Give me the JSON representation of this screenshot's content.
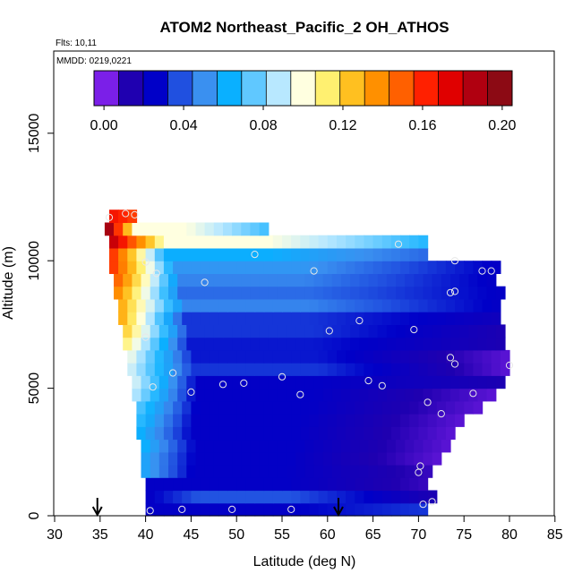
{
  "chart_data": {
    "type": "heatmap",
    "title": "ATOM2 Northeast_Pacific_2 OH_ATHOS",
    "info_flights": "Flts: 10,11",
    "info_dates": "MMDD: 0219,0221",
    "xlabel": "Latitude (deg N)",
    "ylabel": "Altitude (m)",
    "xlim": [
      30,
      85
    ],
    "ylim": [
      0,
      18000
    ],
    "x_ticks": [
      "30",
      "35",
      "40",
      "45",
      "50",
      "55",
      "60",
      "65",
      "70",
      "75",
      "80",
      "85"
    ],
    "y_ticks": [
      "0",
      "5000",
      "10000",
      "15000"
    ],
    "colorbar": {
      "ticks": [
        "0.00",
        "0.04",
        "0.08",
        "0.12",
        "0.16",
        "0.20"
      ],
      "range": [
        -0.005,
        0.205
      ],
      "colors": [
        "#7B1FE8",
        "#1F00B0",
        "#0000C8",
        "#2050E0",
        "#3A90F0",
        "#0AB0FF",
        "#60C8FF",
        "#B8E8FF",
        "#FFFFE0",
        "#FFF070",
        "#FFC020",
        "#FF9000",
        "#FF6000",
        "#FF2000",
        "#E00000",
        "#B00010",
        "#8C0A14"
      ]
    },
    "layers": [
      {
        "alt": 0,
        "lat": [
          40.0,
          71.0
        ],
        "v": [
          0.02,
          0.02,
          0.03
        ]
      },
      {
        "alt": 500,
        "lat": [
          40.0,
          72.0
        ],
        "v": [
          0.02,
          0.035,
          0.01
        ]
      },
      {
        "alt": 1000,
        "lat": [
          40.0,
          71.0
        ],
        "v": [
          0.02,
          0.02,
          0.005
        ]
      },
      {
        "alt": 1500,
        "lat": [
          39.5,
          71.5
        ],
        "v": [
          0.055,
          0.02,
          0.005
        ]
      },
      {
        "alt": 2000,
        "lat": [
          39.5,
          72.5
        ],
        "v": [
          0.055,
          0.02,
          0.0
        ]
      },
      {
        "alt": 2500,
        "lat": [
          39.5,
          73.0
        ],
        "v": [
          0.06,
          0.02,
          0.0
        ]
      },
      {
        "alt": 3000,
        "lat": [
          39.0,
          74.0
        ],
        "v": [
          0.06,
          0.02,
          0.0
        ]
      },
      {
        "alt": 3500,
        "lat": [
          39.0,
          75.0
        ],
        "v": [
          0.065,
          0.02,
          0.0
        ]
      },
      {
        "alt": 4000,
        "lat": [
          39.0,
          77.0
        ],
        "v": [
          0.07,
          0.02,
          0.0
        ]
      },
      {
        "alt": 4500,
        "lat": [
          38.5,
          78.0
        ],
        "v": [
          0.085,
          0.02,
          0.0
        ]
      },
      {
        "alt": 5000,
        "lat": [
          38.5,
          79.0
        ],
        "v": [
          0.09,
          0.02,
          0.01
        ]
      },
      {
        "alt": 5500,
        "lat": [
          38.0,
          80.0
        ],
        "v": [
          0.09,
          0.03,
          0.0
        ]
      },
      {
        "alt": 6000,
        "lat": [
          38.0,
          80.0
        ],
        "v": [
          0.095,
          0.025,
          0.0
        ]
      },
      {
        "alt": 6500,
        "lat": [
          37.5,
          79.0
        ],
        "v": [
          0.11,
          0.025,
          0.01
        ]
      },
      {
        "alt": 7000,
        "lat": [
          37.5,
          79.0
        ],
        "v": [
          0.12,
          0.03,
          0.01
        ]
      },
      {
        "alt": 7500,
        "lat": [
          37.0,
          79.0
        ],
        "v": [
          0.13,
          0.03,
          0.015
        ]
      },
      {
        "alt": 8000,
        "lat": [
          37.0,
          79.0
        ],
        "v": [
          0.13,
          0.045,
          0.02
        ]
      },
      {
        "alt": 8500,
        "lat": [
          36.5,
          79.0
        ],
        "v": [
          0.14,
          0.04,
          0.02
        ]
      },
      {
        "alt": 9000,
        "lat": [
          36.5,
          78.5
        ],
        "v": [
          0.15,
          0.045,
          0.02
        ]
      },
      {
        "alt": 9500,
        "lat": [
          36.0,
          78.5
        ],
        "v": [
          0.16,
          0.05,
          0.02
        ]
      },
      {
        "alt": 10000,
        "lat": [
          36.0,
          70.5
        ],
        "v": [
          0.16,
          0.06,
          0.04
        ]
      },
      {
        "alt": 10500,
        "lat": [
          36.0,
          70.5
        ],
        "v": [
          0.185,
          0.1,
          0.065
        ]
      },
      {
        "alt": 11000,
        "lat": [
          35.5,
          53.5
        ],
        "v": [
          0.195,
          0.1,
          0.07
        ]
      },
      {
        "alt": 11500,
        "lat": [
          36.0,
          39.0
        ],
        "v": [
          0.17,
          0.165,
          0.16
        ]
      }
    ],
    "points": [
      {
        "lat": 36.0,
        "alt": 11700
      },
      {
        "lat": 37.8,
        "alt": 11850
      },
      {
        "lat": 38.8,
        "alt": 11800
      },
      {
        "lat": 52.0,
        "alt": 10250
      },
      {
        "lat": 67.8,
        "alt": 10650
      },
      {
        "lat": 40.0,
        "alt": 9950
      },
      {
        "lat": 41.2,
        "alt": 9500
      },
      {
        "lat": 46.5,
        "alt": 9150
      },
      {
        "lat": 58.5,
        "alt": 9600
      },
      {
        "lat": 74.0,
        "alt": 10000
      },
      {
        "lat": 77.0,
        "alt": 9600
      },
      {
        "lat": 78.0,
        "alt": 9600
      },
      {
        "lat": 73.5,
        "alt": 8750
      },
      {
        "lat": 74.0,
        "alt": 8800
      },
      {
        "lat": 63.5,
        "alt": 7650
      },
      {
        "lat": 60.2,
        "alt": 7250
      },
      {
        "lat": 69.5,
        "alt": 7300
      },
      {
        "lat": 40.0,
        "alt": 7000
      },
      {
        "lat": 73.5,
        "alt": 6200
      },
      {
        "lat": 74.0,
        "alt": 5950
      },
      {
        "lat": 80.0,
        "alt": 5900
      },
      {
        "lat": 43.0,
        "alt": 5600
      },
      {
        "lat": 55.0,
        "alt": 5450
      },
      {
        "lat": 40.8,
        "alt": 5050
      },
      {
        "lat": 45.0,
        "alt": 4850
      },
      {
        "lat": 48.5,
        "alt": 5150
      },
      {
        "lat": 50.8,
        "alt": 5200
      },
      {
        "lat": 57.0,
        "alt": 4750
      },
      {
        "lat": 64.5,
        "alt": 5300
      },
      {
        "lat": 66.0,
        "alt": 5100
      },
      {
        "lat": 76.0,
        "alt": 4800
      },
      {
        "lat": 71.0,
        "alt": 4450
      },
      {
        "lat": 72.5,
        "alt": 4000
      },
      {
        "lat": 70.2,
        "alt": 1950
      },
      {
        "lat": 70.0,
        "alt": 1700
      },
      {
        "lat": 71.5,
        "alt": 550
      },
      {
        "lat": 70.5,
        "alt": 450
      },
      {
        "lat": 40.5,
        "alt": 200
      },
      {
        "lat": 44.0,
        "alt": 250
      },
      {
        "lat": 49.5,
        "alt": 250
      },
      {
        "lat": 56.0,
        "alt": 250
      }
    ],
    "arrows": [
      {
        "lat": 34.7
      },
      {
        "lat": 61.2
      }
    ]
  }
}
